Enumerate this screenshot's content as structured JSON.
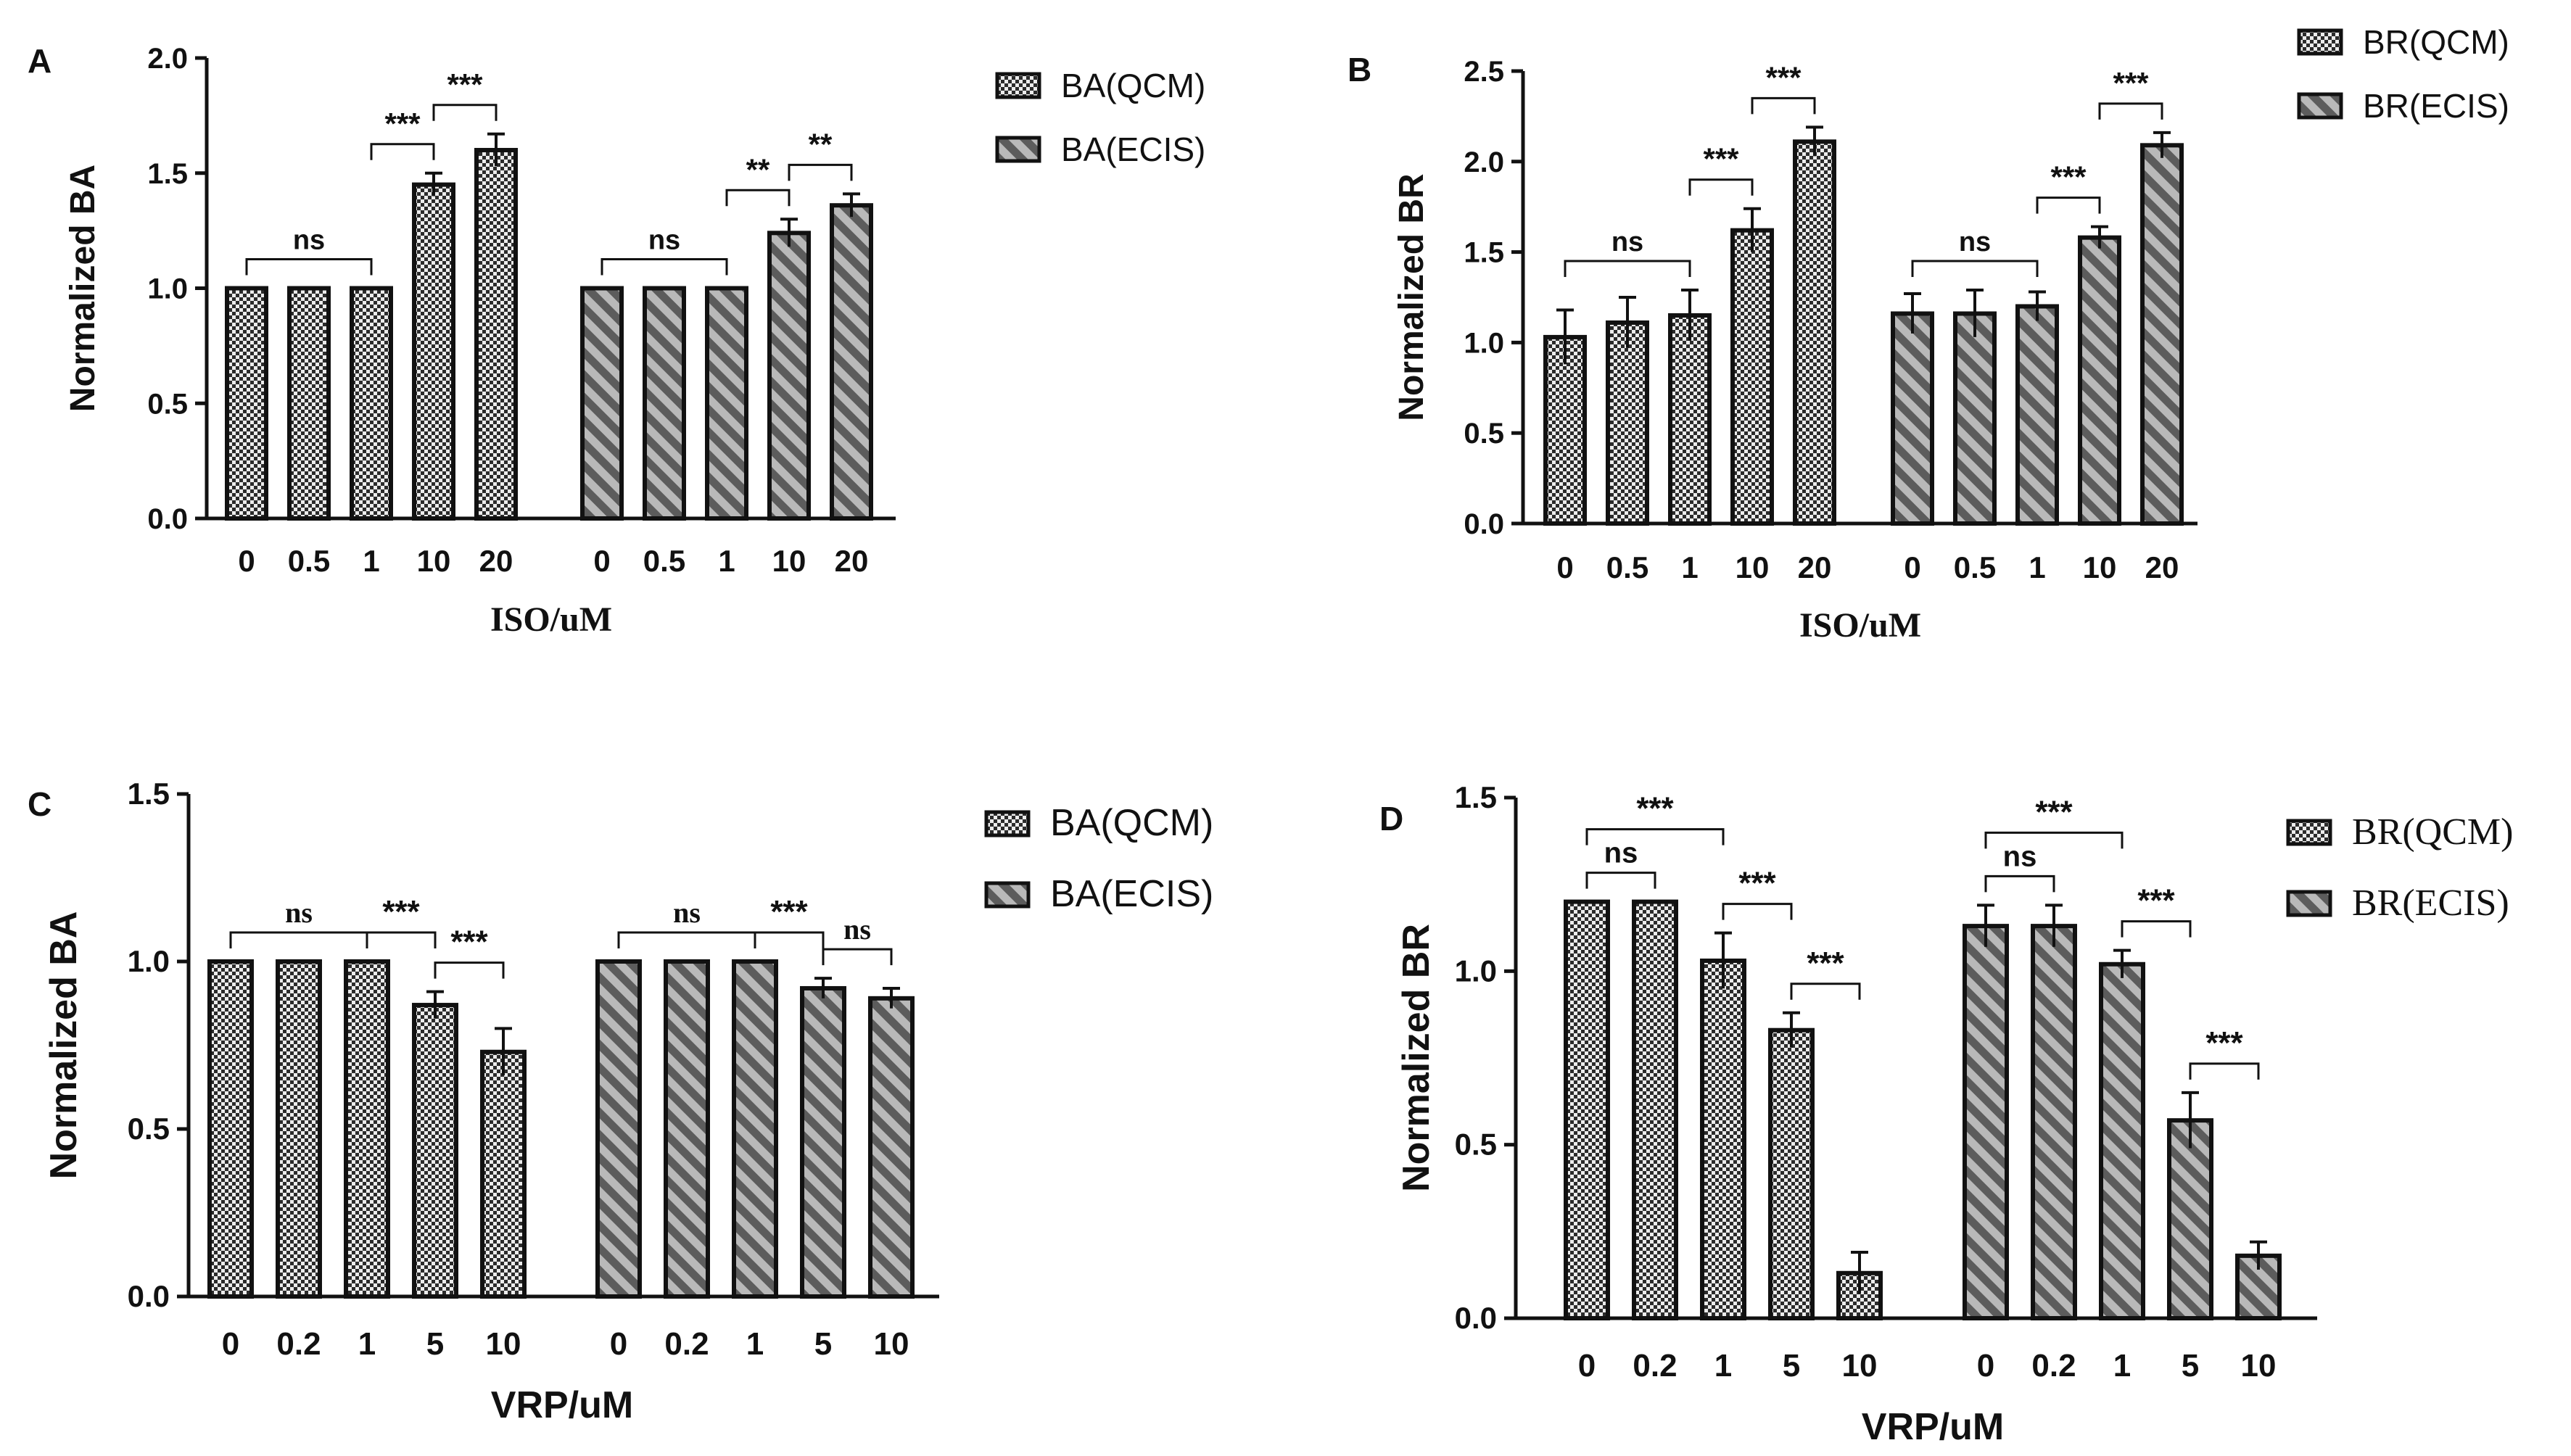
{
  "colors": {
    "bar_outline": "#111111",
    "bar_fill_light": "#e8e8e8",
    "bar_fill_hatch": "#6e6e6e",
    "axis": "#111111"
  },
  "chart_data": [
    {
      "panel": "A",
      "type": "bar",
      "xlabel": "ISO/uM",
      "ylabel": "Normalized BA",
      "ylim": [
        0,
        2.0
      ],
      "yticks": [
        "0.0",
        "0.5",
        "1.0",
        "1.5",
        "2.0"
      ],
      "legend": [
        "BA(QCM)",
        "BA(ECIS)"
      ],
      "series": [
        {
          "name": "BA(QCM)",
          "pattern": "checker",
          "categories": [
            "0",
            "0.5",
            "1",
            "10",
            "20"
          ],
          "values": [
            1.0,
            1.0,
            1.0,
            1.45,
            1.6
          ],
          "errors": [
            0,
            0,
            0,
            0.05,
            0.07
          ]
        },
        {
          "name": "BA(ECIS)",
          "pattern": "stripe",
          "categories": [
            "0",
            "0.5",
            "1",
            "10",
            "20"
          ],
          "values": [
            1.0,
            1.0,
            1.0,
            1.24,
            1.36
          ],
          "errors": [
            0,
            0,
            0,
            0.06,
            0.05
          ]
        }
      ],
      "significance": [
        {
          "series": 0,
          "from": 0,
          "to": 2,
          "label": "ns"
        },
        {
          "series": 0,
          "from": 2,
          "to": 3,
          "label": "***"
        },
        {
          "series": 0,
          "from": 3,
          "to": 4,
          "label": "***"
        },
        {
          "series": 1,
          "from": 0,
          "to": 2,
          "label": "ns"
        },
        {
          "series": 1,
          "from": 2,
          "to": 3,
          "label": "**"
        },
        {
          "series": 1,
          "from": 3,
          "to": 4,
          "label": "**"
        }
      ]
    },
    {
      "panel": "B",
      "type": "bar",
      "xlabel": "ISO/uM",
      "ylabel": "Normalized BR",
      "ylim": [
        0,
        2.5
      ],
      "yticks": [
        "0.0",
        "0.5",
        "1.0",
        "1.5",
        "2.0",
        "2.5"
      ],
      "legend": [
        "BR(QCM)",
        "BR(ECIS)"
      ],
      "series": [
        {
          "name": "BR(QCM)",
          "pattern": "checker",
          "categories": [
            "0",
            "0.5",
            "1",
            "10",
            "20"
          ],
          "values": [
            1.03,
            1.11,
            1.15,
            1.62,
            2.11
          ],
          "errors": [
            0.15,
            0.14,
            0.14,
            0.12,
            0.08
          ]
        },
        {
          "name": "BR(ECIS)",
          "pattern": "stripe",
          "categories": [
            "0",
            "0.5",
            "1",
            "10",
            "20"
          ],
          "values": [
            1.16,
            1.16,
            1.2,
            1.58,
            2.09
          ],
          "errors": [
            0.11,
            0.13,
            0.08,
            0.06,
            0.07
          ]
        }
      ],
      "significance": [
        {
          "series": 0,
          "from": 0,
          "to": 2,
          "label": "ns"
        },
        {
          "series": 0,
          "from": 2,
          "to": 3,
          "label": "***"
        },
        {
          "series": 0,
          "from": 3,
          "to": 4,
          "label": "***"
        },
        {
          "series": 1,
          "from": 0,
          "to": 2,
          "label": "ns"
        },
        {
          "series": 1,
          "from": 2,
          "to": 3,
          "label": "***"
        },
        {
          "series": 1,
          "from": 3,
          "to": 4,
          "label": "***"
        }
      ]
    },
    {
      "panel": "C",
      "type": "bar",
      "xlabel": "VRP/uM",
      "ylabel": "Normalized BA",
      "ylim": [
        0,
        1.5
      ],
      "yticks": [
        "0.0",
        "0.5",
        "1.0",
        "1.5"
      ],
      "legend": [
        "BA(QCM)",
        "BA(ECIS)"
      ],
      "series": [
        {
          "name": "BA(QCM)",
          "pattern": "checker",
          "categories": [
            "0",
            "0.2",
            "1",
            "5",
            "10"
          ],
          "values": [
            1.0,
            1.0,
            1.0,
            0.87,
            0.73
          ],
          "errors": [
            0,
            0,
            0,
            0.04,
            0.07
          ]
        },
        {
          "name": "BA(ECIS)",
          "pattern": "stripe",
          "categories": [
            "0",
            "0.2",
            "1",
            "5",
            "10"
          ],
          "values": [
            1.0,
            1.0,
            1.0,
            0.92,
            0.89
          ],
          "errors": [
            0,
            0,
            0,
            0.03,
            0.03
          ]
        }
      ],
      "significance": [
        {
          "series": 0,
          "from": 0,
          "to": 2,
          "label": "ns"
        },
        {
          "series": 0,
          "from": 2,
          "to": 3,
          "label": "***"
        },
        {
          "series": 0,
          "from": 3,
          "to": 4,
          "label": "***"
        },
        {
          "series": 1,
          "from": 0,
          "to": 2,
          "label": "ns"
        },
        {
          "series": 1,
          "from": 2,
          "to": 3,
          "label": "***"
        },
        {
          "series": 1,
          "from": 3,
          "to": 4,
          "label": "ns"
        }
      ]
    },
    {
      "panel": "D",
      "type": "bar",
      "xlabel": "VRP/uM",
      "ylabel": "Normalized BR",
      "ylim": [
        0,
        1.5
      ],
      "yticks": [
        "0.0",
        "0.5",
        "1.0",
        "1.5"
      ],
      "legend": [
        "BR(QCM)",
        "BR(ECIS)"
      ],
      "series": [
        {
          "name": "BR(QCM)",
          "pattern": "checker",
          "categories": [
            "0",
            "0.2",
            "1",
            "5",
            "10"
          ],
          "values": [
            1.2,
            1.2,
            1.03,
            0.83,
            0.13
          ],
          "errors": [
            0,
            0,
            0.08,
            0.05,
            0.06
          ]
        },
        {
          "name": "BR(ECIS)",
          "pattern": "stripe",
          "categories": [
            "0",
            "0.2",
            "1",
            "5",
            "10"
          ],
          "values": [
            1.13,
            1.13,
            1.02,
            0.57,
            0.18
          ],
          "errors": [
            0.06,
            0.06,
            0.04,
            0.08,
            0.04
          ]
        }
      ],
      "significance": [
        {
          "series": 0,
          "from": 0,
          "to": 1,
          "label": "ns"
        },
        {
          "series": 0,
          "from": 0,
          "to": 2,
          "label": "***"
        },
        {
          "series": 0,
          "from": 2,
          "to": 3,
          "label": "***"
        },
        {
          "series": 0,
          "from": 3,
          "to": 4,
          "label": "***"
        },
        {
          "series": 1,
          "from": 0,
          "to": 1,
          "label": "ns"
        },
        {
          "series": 1,
          "from": 0,
          "to": 2,
          "label": "***"
        },
        {
          "series": 1,
          "from": 2,
          "to": 3,
          "label": "***"
        },
        {
          "series": 1,
          "from": 3,
          "to": 4,
          "label": "***"
        }
      ]
    }
  ]
}
